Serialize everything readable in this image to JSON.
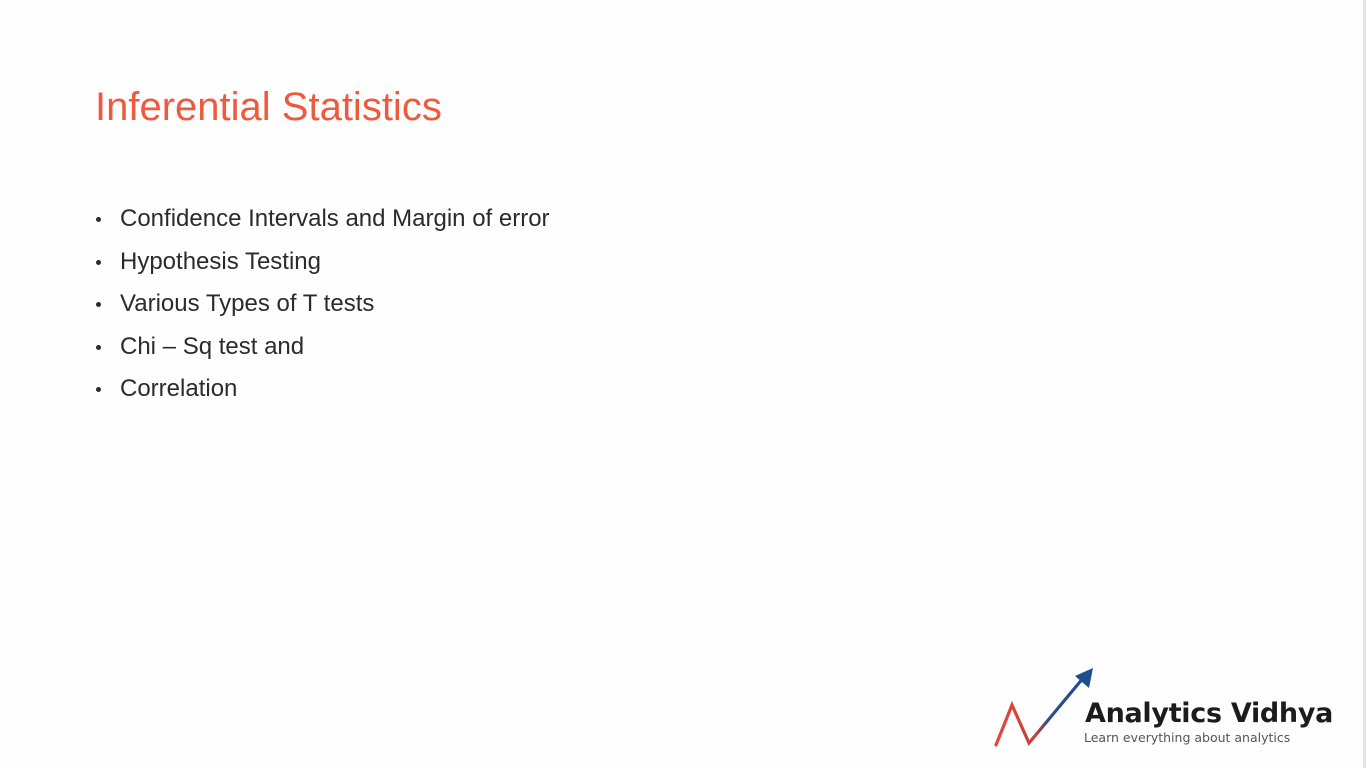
{
  "slide": {
    "title": "Inferential Statistics",
    "bullets": [
      "Confidence Intervals and Margin of error",
      "Hypothesis Testing",
      "Various Types of T tests",
      "Chi – Sq test and",
      "Correlation"
    ]
  },
  "logo": {
    "name": "Analytics Vidhya",
    "tagline": "Learn everything about analytics",
    "icon": "trend-arrow-icon",
    "colors": {
      "red": "#e8463a",
      "blue": "#1e4e8c"
    }
  },
  "theme": {
    "title_color": "#ee5a3d",
    "text_color": "#2b2b2b",
    "background": "#fffeff"
  }
}
